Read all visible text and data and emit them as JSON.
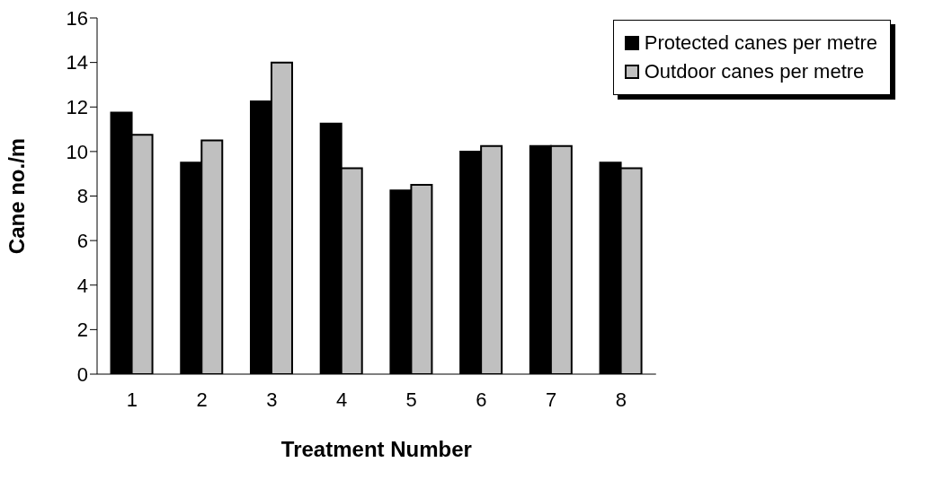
{
  "chart_data": {
    "type": "bar",
    "xlabel": "Treatment Number",
    "ylabel": "Cane no./m",
    "categories": [
      "1",
      "2",
      "3",
      "4",
      "5",
      "6",
      "7",
      "8"
    ],
    "series": [
      {
        "name": "Protected canes per metre",
        "color": "#000000",
        "values": [
          11.75,
          9.5,
          12.25,
          11.25,
          8.25,
          10,
          10.25,
          9.5
        ]
      },
      {
        "name": "Outdoor canes per metre",
        "color": "#c0c0c0",
        "values": [
          10.75,
          10.5,
          14,
          9.25,
          8.5,
          10.25,
          10.25,
          9.25
        ]
      }
    ],
    "ylim": [
      0,
      16
    ],
    "yticks": [
      0,
      2,
      4,
      6,
      8,
      10,
      12,
      14,
      16
    ],
    "grid": false,
    "legend": "top right"
  }
}
